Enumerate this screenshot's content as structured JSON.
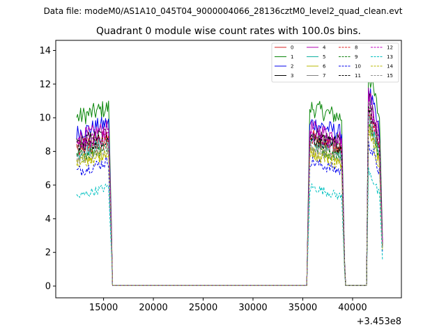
{
  "chart_data": {
    "type": "line",
    "suptitle": "Data file: modeM0/AS1A10_045T04_9000004066_28136cztM0_level2_quad_clean.evt",
    "title": "Quadrant 0 module wise count rates with 100.0s bins.",
    "xlabel": "",
    "ylabel": "",
    "x_offset_label": "+3.453e8",
    "xlim": [
      10200,
      44900
    ],
    "ylim": [
      -0.7,
      14.6
    ],
    "x_ticks": [
      15000,
      20000,
      25000,
      30000,
      35000,
      40000
    ],
    "x_tick_labels": [
      "15000",
      "20000",
      "25000",
      "30000",
      "35000",
      "40000"
    ],
    "y_ticks": [
      0,
      2,
      4,
      6,
      8,
      10,
      12,
      14
    ],
    "y_tick_labels": [
      "0",
      "2",
      "4",
      "6",
      "8",
      "10",
      "12",
      "14"
    ],
    "grid": false,
    "legend_position": "top-right",
    "legend_columns": 4,
    "segments": [
      {
        "start": 12300,
        "end": 15500
      },
      {
        "start": 35700,
        "end": 38900
      },
      {
        "start": 41600,
        "end": 42700
      }
    ],
    "gaps": [
      {
        "start": 15800,
        "end": 35400
      },
      {
        "start": 39200,
        "end": 41400
      }
    ],
    "end_x": 43000,
    "series": [
      {
        "name": "0",
        "color": "#d62020",
        "dash": false,
        "level": 8.3
      },
      {
        "name": "1",
        "color": "#0a870a",
        "dash": false,
        "level": 10.0
      },
      {
        "name": "2",
        "color": "#0000ee",
        "dash": false,
        "level": 9.1
      },
      {
        "name": "3",
        "color": "#000000",
        "dash": false,
        "level": 8.5
      },
      {
        "name": "4",
        "color": "#b000b0",
        "dash": false,
        "level": 8.8
      },
      {
        "name": "5",
        "color": "#10b0a0",
        "dash": false,
        "level": 7.9
      },
      {
        "name": "6",
        "color": "#b8b800",
        "dash": false,
        "level": 7.4
      },
      {
        "name": "7",
        "color": "#808080",
        "dash": false,
        "level": 8.1
      },
      {
        "name": "8",
        "color": "#e02020",
        "dash": true,
        "level": 8.0
      },
      {
        "name": "9",
        "color": "#108010",
        "dash": true,
        "level": 7.7
      },
      {
        "name": "10",
        "color": "#0000ee",
        "dash": true,
        "level": 6.8
      },
      {
        "name": "11",
        "color": "#000000",
        "dash": true,
        "level": 8.2
      },
      {
        "name": "12",
        "color": "#c000c0",
        "dash": true,
        "level": 8.4
      },
      {
        "name": "13",
        "color": "#00c0c0",
        "dash": true,
        "level": 5.3
      },
      {
        "name": "14",
        "color": "#b8b800",
        "dash": true,
        "level": 7.2
      },
      {
        "name": "15",
        "color": "#909090",
        "dash": true,
        "level": 7.6
      }
    ]
  }
}
